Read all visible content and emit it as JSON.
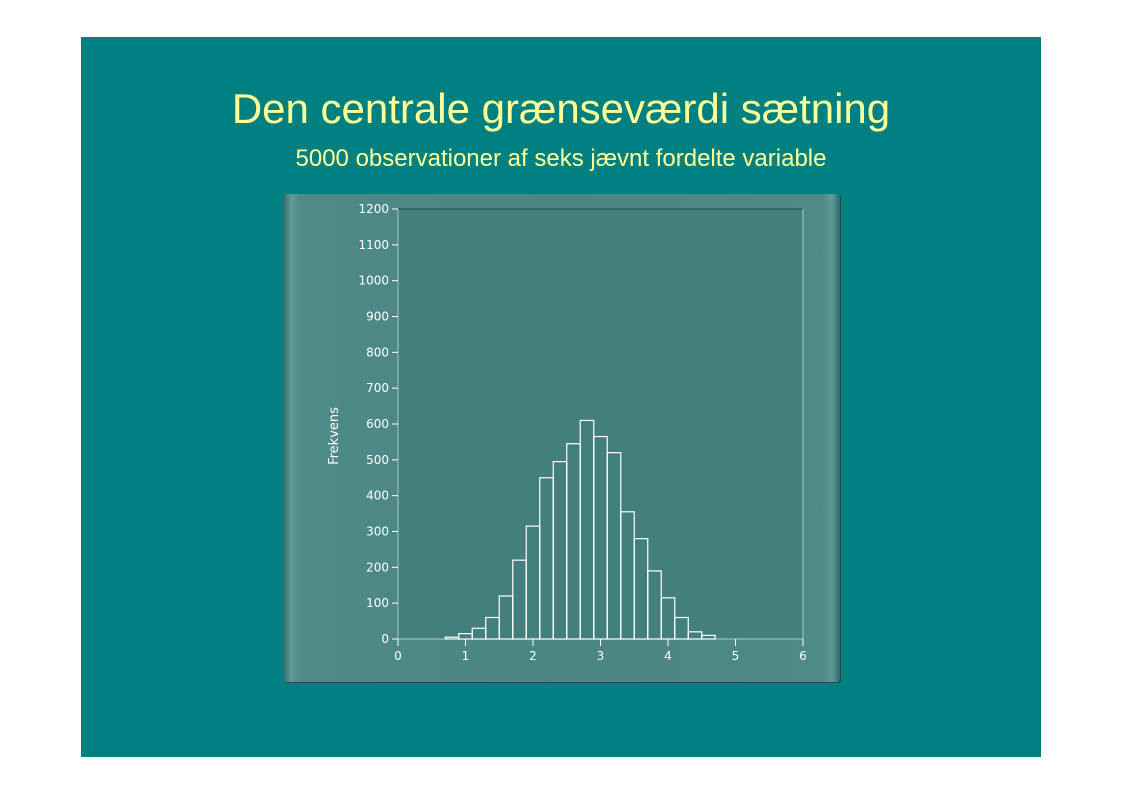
{
  "slide": {
    "title": "Den centrale grænseværdi sætning",
    "subtitle": "5000 observationer af seks jævnt fordelte variable",
    "background": "#008080",
    "text_color": "#ffff99"
  },
  "chart_data": {
    "type": "bar",
    "ylabel": "Frekvens",
    "xlabel": "",
    "xlim": [
      0,
      6
    ],
    "ylim": [
      0,
      1200
    ],
    "x_ticks": [
      0,
      1,
      2,
      3,
      4,
      5,
      6
    ],
    "y_ticks": [
      0,
      100,
      200,
      300,
      400,
      500,
      600,
      700,
      800,
      900,
      1000,
      1100,
      1200
    ],
    "plot_background": "#437f7d",
    "bar_edge_color": "#ffffff",
    "bins": [
      {
        "x0": 0.7,
        "x1": 0.9,
        "value": 5
      },
      {
        "x0": 0.9,
        "x1": 1.1,
        "value": 15
      },
      {
        "x0": 1.1,
        "x1": 1.3,
        "value": 30
      },
      {
        "x0": 1.3,
        "x1": 1.5,
        "value": 60
      },
      {
        "x0": 1.5,
        "x1": 1.7,
        "value": 120
      },
      {
        "x0": 1.7,
        "x1": 1.9,
        "value": 220
      },
      {
        "x0": 1.9,
        "x1": 2.1,
        "value": 315
      },
      {
        "x0": 2.1,
        "x1": 2.3,
        "value": 450
      },
      {
        "x0": 2.3,
        "x1": 2.5,
        "value": 495
      },
      {
        "x0": 2.5,
        "x1": 2.7,
        "value": 545
      },
      {
        "x0": 2.7,
        "x1": 2.9,
        "value": 610
      },
      {
        "x0": 2.9,
        "x1": 3.1,
        "value": 565
      },
      {
        "x0": 3.1,
        "x1": 3.3,
        "value": 520
      },
      {
        "x0": 3.3,
        "x1": 3.5,
        "value": 355
      },
      {
        "x0": 3.5,
        "x1": 3.7,
        "value": 280
      },
      {
        "x0": 3.7,
        "x1": 3.9,
        "value": 190
      },
      {
        "x0": 3.9,
        "x1": 4.1,
        "value": 115
      },
      {
        "x0": 4.1,
        "x1": 4.3,
        "value": 60
      },
      {
        "x0": 4.3,
        "x1": 4.5,
        "value": 20
      },
      {
        "x0": 4.5,
        "x1": 4.7,
        "value": 10
      }
    ]
  }
}
